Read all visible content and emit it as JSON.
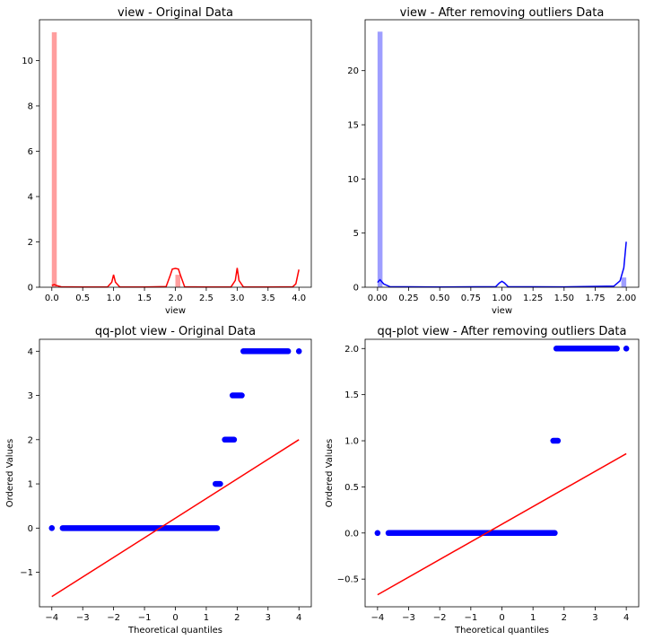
{
  "chart_data": [
    {
      "type": "bar",
      "title": "view - Original Data",
      "xlabel": "view",
      "ylabel": "",
      "xlim": [
        -0.2,
        4.2
      ],
      "ylim": [
        0,
        11.8
      ],
      "xticks": [
        "0.0",
        "0.5",
        "1.0",
        "1.5",
        "2.0",
        "2.5",
        "3.0",
        "3.5",
        "4.0"
      ],
      "yticks": [
        "0",
        "2",
        "4",
        "6",
        "8",
        "10"
      ],
      "color": "#ff0000",
      "bins": [
        {
          "x0": 0.0,
          "x1": 0.08,
          "value": 11.25
        },
        {
          "x0": 2.0,
          "x1": 2.08,
          "value": 0.55
        }
      ],
      "kde": {
        "x": [
          0.0,
          0.04,
          0.08,
          0.15,
          0.5,
          0.9,
          0.97,
          1.0,
          1.03,
          1.1,
          1.5,
          1.85,
          1.92,
          1.95,
          2.0,
          2.05,
          2.08,
          2.15,
          2.5,
          2.9,
          2.97,
          3.0,
          3.03,
          3.1,
          3.5,
          3.9,
          3.95,
          4.0
        ],
        "y": [
          0.08,
          0.12,
          0.07,
          0.02,
          0.01,
          0.01,
          0.22,
          0.55,
          0.22,
          0.01,
          0.01,
          0.03,
          0.55,
          0.8,
          0.83,
          0.8,
          0.55,
          0.02,
          0.01,
          0.01,
          0.3,
          0.85,
          0.3,
          0.01,
          0.01,
          0.02,
          0.15,
          0.78
        ]
      }
    },
    {
      "type": "bar",
      "title": "view - After removing outliers Data",
      "xlabel": "view",
      "ylabel": "",
      "xlim": [
        -0.1,
        2.1
      ],
      "ylim": [
        0,
        24.7
      ],
      "xticks": [
        "0.00",
        "0.25",
        "0.50",
        "0.75",
        "1.00",
        "1.25",
        "1.50",
        "1.75",
        "2.00"
      ],
      "yticks": [
        "0",
        "5",
        "10",
        "15",
        "20"
      ],
      "color": "#0000ff",
      "bins": [
        {
          "x0": 0.0,
          "x1": 0.04,
          "value": 23.6
        },
        {
          "x0": 1.96,
          "x1": 2.0,
          "value": 0.9
        }
      ],
      "kde": {
        "x": [
          0.0,
          0.02,
          0.05,
          0.1,
          0.5,
          0.95,
          0.98,
          1.0,
          1.02,
          1.05,
          1.5,
          1.9,
          1.95,
          1.98,
          2.0
        ],
        "y": [
          0.45,
          0.7,
          0.3,
          0.05,
          0.02,
          0.05,
          0.4,
          0.55,
          0.4,
          0.05,
          0.03,
          0.1,
          0.6,
          1.8,
          4.2
        ]
      }
    },
    {
      "type": "scatter",
      "title": "qq-plot view - Original Data",
      "xlabel": "Theoretical quantiles",
      "ylabel": "Ordered Values",
      "xlim": [
        -4.4,
        4.4
      ],
      "ylim": [
        -1.78,
        4.27
      ],
      "xticks": [
        "−4",
        "−3",
        "−2",
        "−1",
        "0",
        "1",
        "2",
        "3",
        "4"
      ],
      "yticks": [
        "−1",
        "0",
        "1",
        "2",
        "3",
        "4"
      ],
      "point_color": "#0000ff",
      "line_color": "#ff0000",
      "groups": [
        {
          "y": 0,
          "x_start": -3.65,
          "x_end": 1.35,
          "extra": [
            -4.0
          ]
        },
        {
          "y": 1,
          "x_start": 1.3,
          "x_end": 1.45,
          "extra": []
        },
        {
          "y": 2,
          "x_start": 1.6,
          "x_end": 1.9,
          "extra": []
        },
        {
          "y": 3,
          "x_start": 1.85,
          "x_end": 2.15,
          "extra": []
        },
        {
          "y": 4,
          "x_start": 2.2,
          "x_end": 3.65,
          "extra": [
            4.0
          ]
        }
      ],
      "fit_line": {
        "x": [
          -4,
          4
        ],
        "y": [
          -1.55,
          2.0
        ]
      }
    },
    {
      "type": "scatter",
      "title": "qq-plot view - After removing outliers Data",
      "xlabel": "Theoretical quantiles",
      "ylabel": "Ordered Values",
      "xlim": [
        -4.4,
        4.4
      ],
      "ylim": [
        -0.8,
        2.1
      ],
      "xticks": [
        "−4",
        "−3",
        "−2",
        "−1",
        "0",
        "1",
        "2",
        "3",
        "4"
      ],
      "yticks": [
        "−0.5",
        "0.0",
        "0.5",
        "1.0",
        "1.5",
        "2.0"
      ],
      "point_color": "#0000ff",
      "line_color": "#ff0000",
      "groups": [
        {
          "y": 0,
          "x_start": -3.65,
          "x_end": 1.7,
          "extra": [
            -4.0
          ]
        },
        {
          "y": 1,
          "x_start": 1.65,
          "x_end": 1.8,
          "extra": []
        },
        {
          "y": 2,
          "x_start": 1.75,
          "x_end": 3.7,
          "extra": [
            4.0
          ]
        }
      ],
      "fit_line": {
        "x": [
          -4,
          4
        ],
        "y": [
          -0.67,
          0.86
        ]
      }
    }
  ]
}
